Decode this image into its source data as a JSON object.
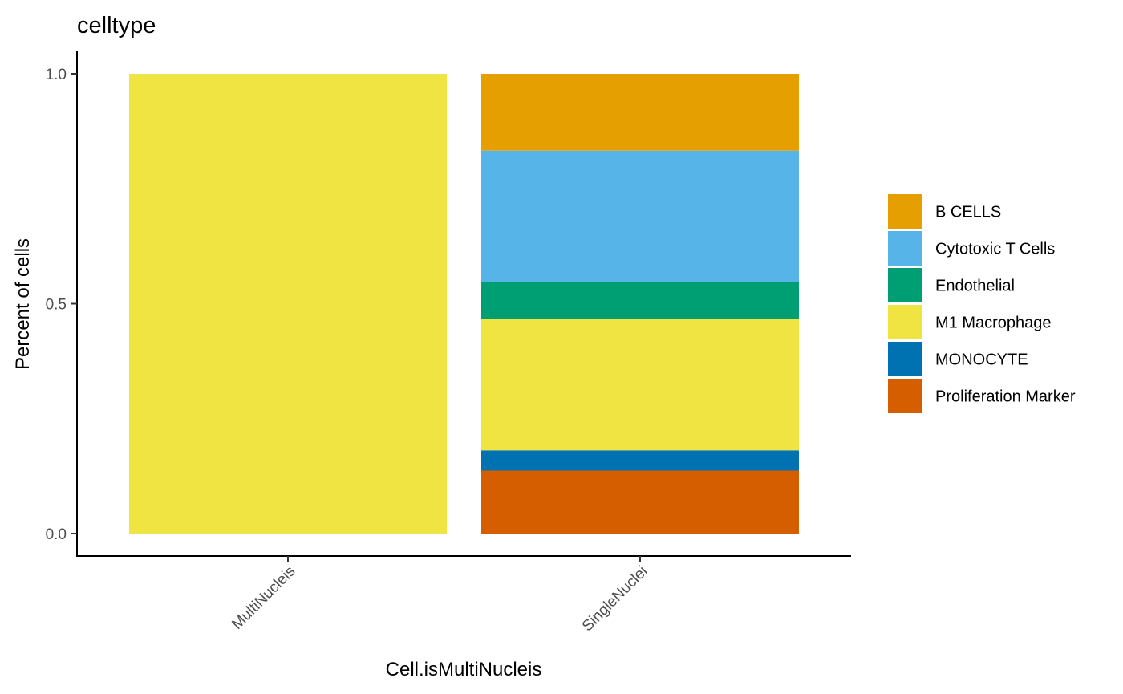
{
  "chart_data": {
    "type": "bar",
    "stacked": true,
    "title": "celltype",
    "xlabel": "Cell.isMultiNucleis",
    "ylabel": "Percent of cells",
    "categories": [
      "MultiNucleis",
      "SingleNuclei"
    ],
    "ylim": [
      0,
      1
    ],
    "yticks": [
      0.0,
      0.5,
      1.0
    ],
    "ytick_labels": [
      "0.0",
      "0.5",
      "1.0"
    ],
    "grid": false,
    "legend_position": "right",
    "series": [
      {
        "name": "B CELLS",
        "color": "#E69F00",
        "values": [
          0,
          0.167
        ]
      },
      {
        "name": "Cytotoxic T Cells",
        "color": "#56B4E9",
        "values": [
          0,
          0.286
        ]
      },
      {
        "name": "Endothelial",
        "color": "#009E73",
        "values": [
          0,
          0.08
        ]
      },
      {
        "name": "M1 Macrophage",
        "color": "#F0E442",
        "values": [
          1.0,
          0.286
        ]
      },
      {
        "name": "MONOCYTE",
        "color": "#0072B2",
        "values": [
          0,
          0.044
        ]
      },
      {
        "name": "Proliferation Marker",
        "color": "#D55E00",
        "values": [
          0,
          0.137
        ]
      }
    ]
  }
}
